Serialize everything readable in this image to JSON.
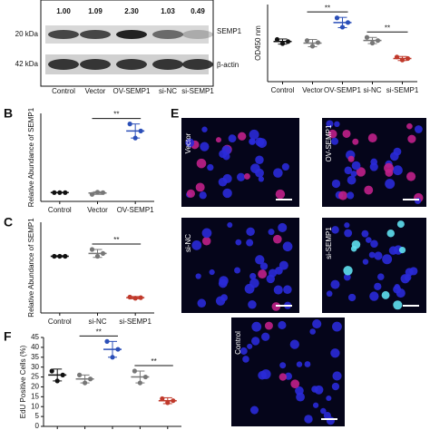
{
  "panels": {
    "b": "B",
    "c": "C",
    "e": "E",
    "f": "F"
  },
  "blot": {
    "ratios": [
      "1.00",
      "1.09",
      "2.30",
      "1.03",
      "0.49"
    ],
    "sizes": [
      "20 kDa",
      "42 kDa"
    ],
    "proteins": [
      "SEMP1",
      "β-actin"
    ],
    "lanes": [
      "Control",
      "Vector",
      "OV-SEMP1",
      "si-NC",
      "si-SEMP1"
    ]
  },
  "images": {
    "labels": [
      "Vector",
      "OV-SEMP1",
      "si-NC",
      "si-SEMP1",
      "Control"
    ]
  },
  "chart_data": [
    {
      "type": "dot",
      "y_label": "OD450 nm",
      "categories": [
        "Control",
        "Vector",
        "OV-SEMP1",
        "si-NC",
        "si-SEMP1"
      ],
      "colors": [
        "#111111",
        "#777777",
        "#2b4fb8",
        "#777777",
        "#c0392b"
      ],
      "values": [
        0.78,
        0.75,
        1.15,
        0.8,
        0.45
      ],
      "errors": [
        0.05,
        0.07,
        0.1,
        0.06,
        0.04
      ],
      "points": [
        [
          0.82,
          0.74,
          0.78
        ],
        [
          0.8,
          0.69,
          0.76
        ],
        [
          1.24,
          1.06,
          1.15
        ],
        [
          0.86,
          0.75,
          0.8
        ],
        [
          0.48,
          0.42,
          0.45
        ]
      ],
      "ylim": [
        0,
        1.5
      ],
      "annotations": [
        {
          "text": "**",
          "between": [
            1,
            2
          ]
        },
        {
          "text": "**",
          "between": [
            3,
            4
          ]
        }
      ]
    },
    {
      "type": "dot",
      "y_label": "Relative Abundance of SEMP1",
      "categories": [
        "Control",
        "Vector",
        "OV-SEMP1"
      ],
      "colors": [
        "#111111",
        "#777777",
        "#2b4fb8"
      ],
      "values": [
        1,
        0.95,
        8
      ],
      "errors": [
        0.02,
        0.15,
        0.8
      ],
      "points": [
        [
          1,
          1,
          1
        ],
        [
          0.8,
          1.05,
          1
        ],
        [
          8.8,
          7.2,
          8
        ]
      ],
      "ylim": [
        0,
        10
      ],
      "annotations": [
        {
          "text": "**",
          "between": [
            1,
            2
          ]
        }
      ]
    },
    {
      "type": "dot",
      "y_label": "Relative Abundance of SEMP1",
      "categories": [
        "Control",
        "si-NC",
        "si-SEMP1"
      ],
      "colors": [
        "#111111",
        "#777777",
        "#c0392b"
      ],
      "values": [
        1,
        1.05,
        0.27
      ],
      "errors": [
        0.01,
        0.07,
        0.02
      ],
      "points": [
        [
          1,
          1,
          1
        ],
        [
          1.12,
          1.0,
          1.05
        ],
        [
          0.28,
          0.26,
          0.27
        ]
      ],
      "ylim": [
        0,
        1.6
      ],
      "annotations": [
        {
          "text": "**",
          "between": [
            1,
            2
          ]
        }
      ]
    },
    {
      "type": "dot",
      "y_label": "EdU Positive Cells (%)",
      "categories": [
        null,
        null,
        null,
        null,
        null
      ],
      "colors": [
        "#111111",
        "#777777",
        "#2b4fb8",
        "#777777",
        "#c0392b"
      ],
      "values": [
        26,
        24,
        39,
        25,
        13
      ],
      "errors": [
        3,
        2,
        4,
        3,
        1.5
      ],
      "points": [
        [
          28,
          23,
          26
        ],
        [
          26,
          22,
          24
        ],
        [
          43,
          35,
          39
        ],
        [
          28,
          22,
          25
        ],
        [
          14,
          12,
          13
        ]
      ],
      "ylim": [
        0,
        45
      ],
      "yticks": [
        0,
        5,
        10,
        15,
        20,
        25,
        30,
        35,
        40,
        45
      ],
      "annotations": [
        {
          "text": "**",
          "between": [
            1,
            2
          ]
        },
        {
          "text": "**",
          "between": [
            3,
            4
          ]
        }
      ]
    }
  ]
}
